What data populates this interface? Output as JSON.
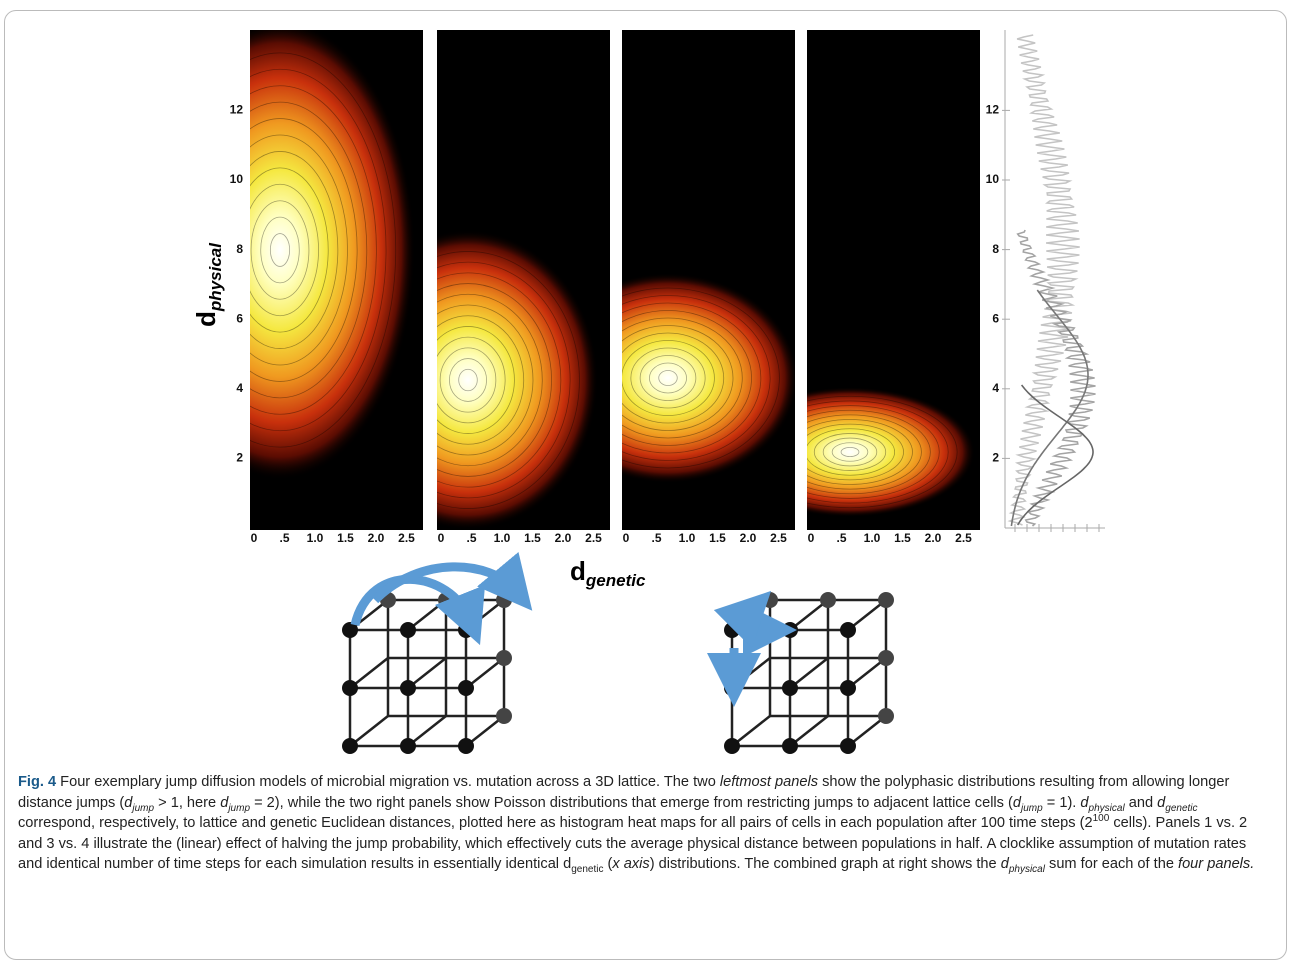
{
  "figure": {
    "y_ticks": [
      "2",
      "4",
      "6",
      "8",
      "10",
      "12"
    ],
    "x_ticks": [
      "0",
      ".5",
      "1.0",
      "1.5",
      "2.0",
      "2.5"
    ],
    "y_label": {
      "base": "d",
      "sub": "physical"
    },
    "x_label": {
      "base": "d",
      "sub": "genetic"
    }
  },
  "caption": {
    "runs": [
      "Fig. 4",
      " Four exemplary jump diffusion models of microbial migration vs. mutation across a 3D lattice. The two ",
      "leftmost panels",
      " show the polyphasic distributions resulting from allowing longer distance jumps (",
      "d",
      "jump",
      " > 1, here ",
      "d",
      "jump",
      " = 2), while the two right panels show Poisson distributions that emerge from restricting jumps to adjacent lattice cells (",
      "d",
      "jump",
      " = 1). ",
      "d",
      "physical",
      " and ",
      "d",
      "genetic",
      " correspond, respectively, to lattice and genetic Euclidean distances, plotted here as histogram heat maps for all pairs of cells in each population after 100 time steps (2",
      "100",
      " cells). Panels 1 vs. 2 and 3 vs. 4 illustrate the (linear) effect of halving the jump probability, which effectively cuts the average physical distance between populations in half. A clocklike assumption of mutation rates and identical number of time steps for each simulation results in essentially identical d",
      "genetic",
      " (",
      "x axis",
      ") distributions. The combined graph at right shows the ",
      "d",
      "physical",
      " sum for each of the ",
      "four panels."
    ]
  }
}
